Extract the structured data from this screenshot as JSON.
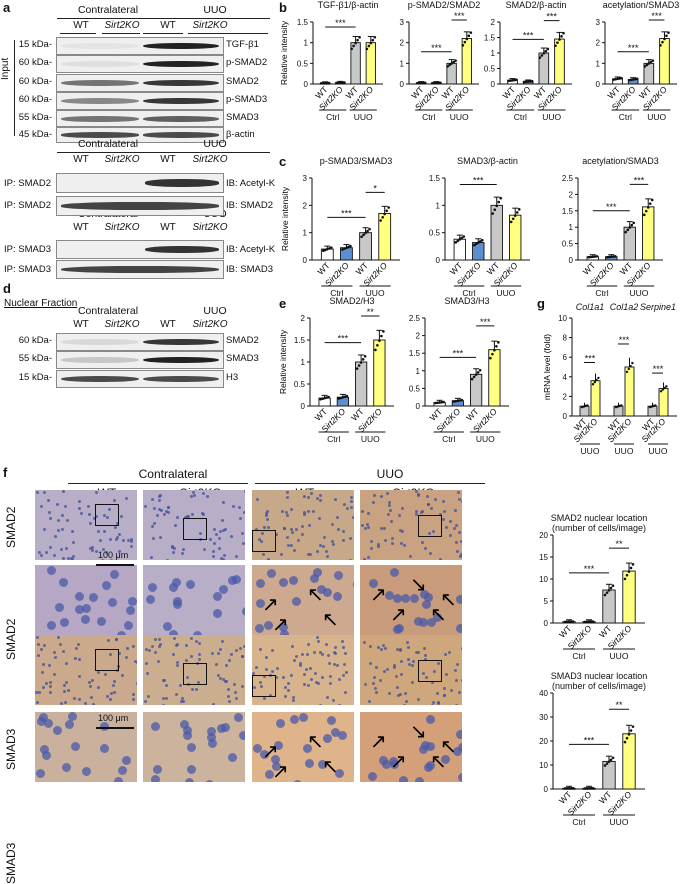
{
  "panel_labels": {
    "a": "a",
    "b": "b",
    "c": "c",
    "d": "d",
    "e": "e",
    "f": "f",
    "g": "g"
  },
  "blots": {
    "header": {
      "contralateral": "Contralateral",
      "uuo": "UUO",
      "wt": "WT",
      "sirt2": "Sirt2KO"
    },
    "input_label": "Input",
    "mw_input": [
      "15 kDa-",
      "60 kDa-",
      "60 kDa-",
      "60 kDa-",
      "55 kDa-",
      "45 kDa-"
    ],
    "input_rows": [
      "TGF-β1",
      "p-SMAD2",
      "SMAD2",
      "p-SMAD3",
      "SMAD3",
      "β-actin"
    ],
    "ip_smad2": {
      "ip": [
        "IP: SMAD2",
        "IP: SMAD2"
      ],
      "ib": [
        "IB: Acetyl-K",
        "IB: SMAD2"
      ]
    },
    "ip_smad3": {
      "ip": [
        "IP: SMAD3",
        "IP: SMAD3"
      ],
      "ib": [
        "IB: Acetyl-K",
        "IB: SMAD3"
      ]
    },
    "nuclear_title": "Nuclear Fraction",
    "mw_nuclear": [
      "60 kDa-",
      "55 kDa-",
      "15 kDa-"
    ],
    "nuclear_rows": [
      "SMAD2",
      "SMAD3",
      "H3"
    ]
  },
  "axis_common": {
    "ctrl": "Ctrl",
    "uuo": "UUO",
    "wt": "WT",
    "sirt2": "Sirt2KO",
    "ylabel_ri": "Relative intensity",
    "ylabel_mrna": "mRNA level (fold)",
    "sig3": "***",
    "sig2": "**",
    "sig1": "*"
  },
  "colors": {
    "wt_ctrl": "#ffffff",
    "ko_ctrl": "#5b8fd0",
    "wt_uuo": "#c8c8c8",
    "ko_uuo": "#ffff80",
    "ko_ctrl_b": "#333333"
  },
  "chart_data": [
    {
      "type": "bar",
      "panel": "b",
      "title": "TGF-β1/β-actin",
      "categories": [
        "WT Ctrl",
        "Sirt2KO Ctrl",
        "WT UUO",
        "Sirt2KO UUO"
      ],
      "values": [
        0.02,
        0.03,
        1.0,
        1.0
      ],
      "ylim": [
        0,
        1.5
      ],
      "yticks": [
        0,
        0.5,
        1.0,
        1.5
      ],
      "ylabel": "Relative intensity",
      "sig": [
        {
          "from": 0,
          "to": 2,
          "label": "***"
        }
      ]
    },
    {
      "type": "bar",
      "panel": "b",
      "title": "p-SMAD2/SMAD2",
      "categories": [
        "WT Ctrl",
        "Sirt2KO Ctrl",
        "WT UUO",
        "Sirt2KO UUO"
      ],
      "values": [
        0.05,
        0.05,
        1.0,
        2.2
      ],
      "ylim": [
        0,
        3
      ],
      "yticks": [
        0,
        1,
        2,
        3
      ],
      "sig": [
        {
          "from": 0,
          "to": 2,
          "label": "***"
        },
        {
          "from": 2,
          "to": 3,
          "label": "***"
        }
      ]
    },
    {
      "type": "bar",
      "panel": "b",
      "title": "SMAD2/β-actin",
      "categories": [
        "WT Ctrl",
        "Sirt2KO Ctrl",
        "WT UUO",
        "Sirt2KO UUO"
      ],
      "values": [
        0.12,
        0.08,
        1.0,
        1.45
      ],
      "ylim": [
        0,
        2.0
      ],
      "yticks": [
        0,
        0.5,
        1.0,
        1.5,
        2.0
      ],
      "sig": [
        {
          "from": 0,
          "to": 2,
          "label": "***"
        },
        {
          "from": 2,
          "to": 3,
          "label": "***"
        }
      ]
    },
    {
      "type": "bar",
      "panel": "b",
      "title": "acetylation/SMAD3",
      "categories": [
        "WT Ctrl",
        "Sirt2KO Ctrl",
        "WT UUO",
        "Sirt2KO UUO"
      ],
      "values": [
        0.25,
        0.22,
        1.0,
        2.2
      ],
      "ylim": [
        0,
        3
      ],
      "yticks": [
        0,
        1,
        2,
        3
      ],
      "sig": [
        {
          "from": 0,
          "to": 2,
          "label": "***"
        },
        {
          "from": 2,
          "to": 3,
          "label": "***"
        }
      ]
    },
    {
      "type": "bar",
      "panel": "c",
      "title": "p-SMAD3/SMAD3",
      "categories": [
        "WT Ctrl",
        "Sirt2KO Ctrl",
        "WT UUO",
        "Sirt2KO UUO"
      ],
      "values": [
        0.4,
        0.45,
        1.0,
        1.7
      ],
      "ylim": [
        0,
        3
      ],
      "yticks": [
        0,
        1,
        2,
        3
      ],
      "ylabel": "Relative intensity",
      "sig": [
        {
          "from": 0,
          "to": 2,
          "label": "***"
        },
        {
          "from": 2,
          "to": 3,
          "label": "*"
        }
      ]
    },
    {
      "type": "bar",
      "panel": "c",
      "title": "SMAD3/β-actin",
      "categories": [
        "WT Ctrl",
        "Sirt2KO Ctrl",
        "WT UUO",
        "Sirt2KO UUO"
      ],
      "values": [
        0.38,
        0.32,
        1.0,
        0.82
      ],
      "ylim": [
        0,
        1.5
      ],
      "yticks": [
        0,
        0.5,
        1.0,
        1.5
      ],
      "sig": [
        {
          "from": 0,
          "to": 2,
          "label": "***"
        }
      ]
    },
    {
      "type": "bar",
      "panel": "c",
      "title": "acetylation/SMAD3",
      "categories": [
        "WT Ctrl",
        "Sirt2KO Ctrl",
        "WT UUO",
        "Sirt2KO UUO"
      ],
      "values": [
        0.1,
        0.1,
        1.0,
        1.62
      ],
      "ylim": [
        0,
        2.5
      ],
      "yticks": [
        0,
        0.5,
        1.0,
        1.5,
        2.0,
        2.5
      ],
      "sig": [
        {
          "from": 0,
          "to": 2,
          "label": "***"
        },
        {
          "from": 2,
          "to": 3,
          "label": "***"
        }
      ]
    },
    {
      "type": "bar",
      "panel": "e",
      "title": "SMAD2/H3",
      "categories": [
        "WT Ctrl",
        "Sirt2KO Ctrl",
        "WT UUO",
        "Sirt2KO UUO"
      ],
      "values": [
        0.18,
        0.2,
        1.0,
        1.5
      ],
      "ylim": [
        0,
        2.0
      ],
      "yticks": [
        0,
        0.5,
        1.0,
        1.5,
        2.0
      ],
      "ylabel": "Relative intensity",
      "sig": [
        {
          "from": 0,
          "to": 2,
          "label": "***"
        },
        {
          "from": 2,
          "to": 3,
          "label": "**"
        }
      ]
    },
    {
      "type": "bar",
      "panel": "e",
      "title": "SMAD3/H3",
      "categories": [
        "WT Ctrl",
        "Sirt2KO Ctrl",
        "WT UUO",
        "Sirt2KO UUO"
      ],
      "values": [
        0.1,
        0.15,
        0.9,
        1.6
      ],
      "ylim": [
        0,
        2.5
      ],
      "yticks": [
        0,
        0.5,
        1.0,
        1.5,
        2.0,
        2.5
      ],
      "sig": [
        {
          "from": 0,
          "to": 2,
          "label": "***"
        },
        {
          "from": 2,
          "to": 3,
          "label": "***"
        }
      ]
    },
    {
      "type": "bar",
      "panel": "g",
      "title": "",
      "genes": [
        "Col1a1",
        "Col1a2",
        "Serpine1"
      ],
      "values": [
        [
          1.0,
          3.6
        ],
        [
          1.0,
          5.0
        ],
        [
          1.0,
          2.8
        ]
      ],
      "ylim": [
        0,
        10
      ],
      "yticks": [
        0,
        2,
        4,
        6,
        8,
        10
      ],
      "ylabel": "mRNA level (fold)",
      "sig": [
        "***",
        "***",
        "***"
      ]
    },
    {
      "type": "bar",
      "panel": "f",
      "title": "SMAD2 nuclear location",
      "subtitle": "(number of cells/image)",
      "categories": [
        "WT Ctrl",
        "Sirt2KO Ctrl",
        "WT UUO",
        "Sirt2KO UUO"
      ],
      "values": [
        0.3,
        0.3,
        7.5,
        11.8
      ],
      "ylim": [
        0,
        20
      ],
      "yticks": [
        0,
        5,
        10,
        15,
        20
      ],
      "sig": [
        {
          "from": 0,
          "to": 2,
          "label": "***"
        },
        {
          "from": 2,
          "to": 3,
          "label": "**"
        }
      ]
    },
    {
      "type": "bar",
      "panel": "f",
      "title": "SMAD3 nuclear location",
      "subtitle": "(number of cells/image)",
      "categories": [
        "WT Ctrl",
        "Sirt2KO Ctrl",
        "WT UUO",
        "Sirt2KO UUO"
      ],
      "values": [
        0.3,
        0.3,
        11.5,
        23.0
      ],
      "ylim": [
        0,
        40
      ],
      "yticks": [
        0,
        10,
        20,
        30,
        40
      ],
      "sig": [
        {
          "from": 0,
          "to": 2,
          "label": "***"
        },
        {
          "from": 2,
          "to": 3,
          "label": "**"
        }
      ]
    }
  ],
  "histology": {
    "col_headers": {
      "contralateral": "Contralateral",
      "uuo": "UUO",
      "wt": "WT",
      "sirt2": "Sirt2KO"
    },
    "row_labels": [
      "SMAD2",
      "SMAD2",
      "SMAD3",
      "SMAD3"
    ],
    "scale_bar": "100 μm"
  }
}
